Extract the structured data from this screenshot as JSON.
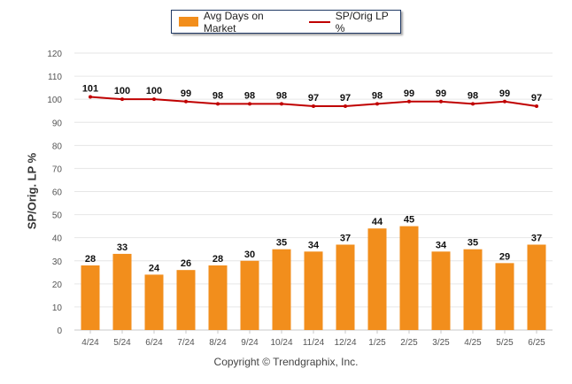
{
  "legend": {
    "bar_label": "Avg Days on Market",
    "line_label": "SP/Orig LP %"
  },
  "copyright": "Copyright © Trendgraphix, Inc.",
  "colors": {
    "bar": "#f28e1c",
    "line": "#c00000",
    "grid": "#e6e6e6"
  },
  "chart_data": {
    "type": "bar",
    "categories": [
      "4/24",
      "5/24",
      "6/24",
      "7/24",
      "8/24",
      "9/24",
      "10/24",
      "11/24",
      "12/24",
      "1/25",
      "2/25",
      "3/25",
      "4/25",
      "5/25",
      "6/25"
    ],
    "series": [
      {
        "name": "Avg Days on Market",
        "type": "bar",
        "values": [
          28,
          33,
          24,
          26,
          28,
          30,
          35,
          34,
          37,
          44,
          45,
          34,
          35,
          29,
          37
        ]
      },
      {
        "name": "SP/Orig LP %",
        "type": "line",
        "values": [
          101,
          100,
          100,
          99,
          98,
          98,
          98,
          97,
          97,
          98,
          99,
          99,
          98,
          99,
          97
        ]
      }
    ],
    "ylabel": "SP/Orig. LP %",
    "xlabel": "",
    "ylim": [
      0,
      120
    ],
    "yticks": [
      0,
      10,
      20,
      30,
      40,
      50,
      60,
      70,
      80,
      90,
      100,
      110,
      120
    ],
    "grid": true,
    "legend_position": "top-center",
    "data_labels": true
  }
}
